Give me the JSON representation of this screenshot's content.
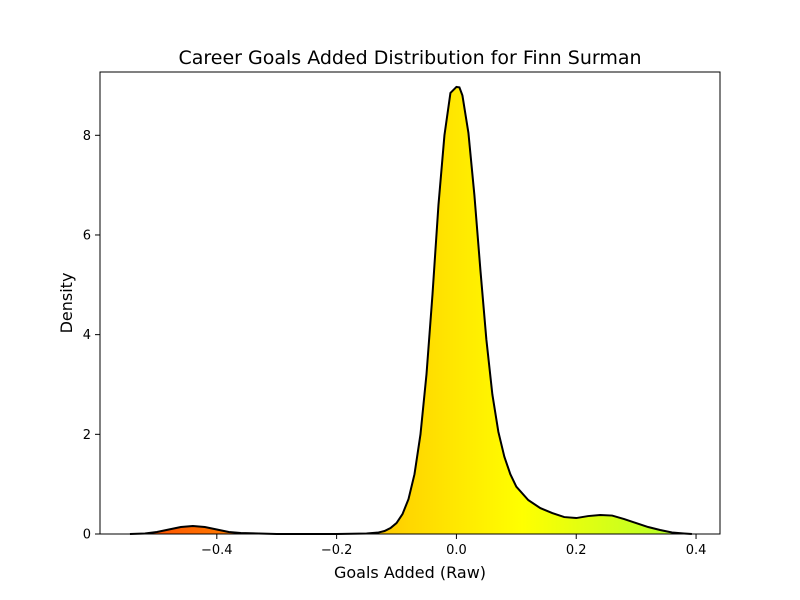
{
  "chart_data": {
    "type": "area",
    "title": "Career Goals Added Distribution for Finn Surman",
    "xlabel": "Goals Added (Raw)",
    "ylabel": "Density",
    "xlim": [
      -0.595,
      0.44
    ],
    "ylim": [
      0,
      9.27
    ],
    "x_ticks": [
      -0.4,
      -0.2,
      0.0,
      0.2,
      0.4
    ],
    "x_tick_labels": [
      "−0.4",
      "−0.2",
      "0.0",
      "0.2",
      "0.4"
    ],
    "y_ticks": [
      0,
      2,
      4,
      6,
      8
    ],
    "y_tick_labels": [
      "0",
      "2",
      "4",
      "6",
      "8"
    ],
    "grid": false,
    "legend": "none",
    "line_color": "#000000",
    "fill_gradient": [
      "#ff4500",
      "#ffd700",
      "#ffff00",
      "#adff2f"
    ],
    "series": [
      {
        "x": [
          -0.545,
          -0.52,
          -0.5,
          -0.48,
          -0.46,
          -0.44,
          -0.42,
          -0.4,
          -0.38,
          -0.36,
          -0.33,
          -0.3,
          -0.25,
          -0.2,
          -0.15,
          -0.13,
          -0.12,
          -0.11,
          -0.1,
          -0.09,
          -0.08,
          -0.07,
          -0.06,
          -0.05,
          -0.04,
          -0.03,
          -0.02,
          -0.01,
          0.0,
          0.005,
          0.01,
          0.02,
          0.03,
          0.04,
          0.05,
          0.06,
          0.07,
          0.08,
          0.09,
          0.1,
          0.12,
          0.14,
          0.16,
          0.18,
          0.2,
          0.22,
          0.24,
          0.26,
          0.28,
          0.3,
          0.32,
          0.34,
          0.36,
          0.38,
          0.393
        ],
        "y": [
          0.0,
          0.01,
          0.04,
          0.09,
          0.14,
          0.16,
          0.14,
          0.09,
          0.04,
          0.02,
          0.01,
          0.0,
          0.0,
          0.0,
          0.01,
          0.03,
          0.06,
          0.12,
          0.22,
          0.4,
          0.7,
          1.2,
          2.0,
          3.2,
          4.8,
          6.6,
          8.0,
          8.85,
          8.97,
          8.96,
          8.8,
          8.05,
          6.8,
          5.3,
          3.9,
          2.8,
          2.05,
          1.55,
          1.2,
          0.95,
          0.68,
          0.52,
          0.42,
          0.34,
          0.32,
          0.36,
          0.38,
          0.37,
          0.3,
          0.22,
          0.14,
          0.08,
          0.03,
          0.01,
          0.0
        ]
      }
    ]
  }
}
